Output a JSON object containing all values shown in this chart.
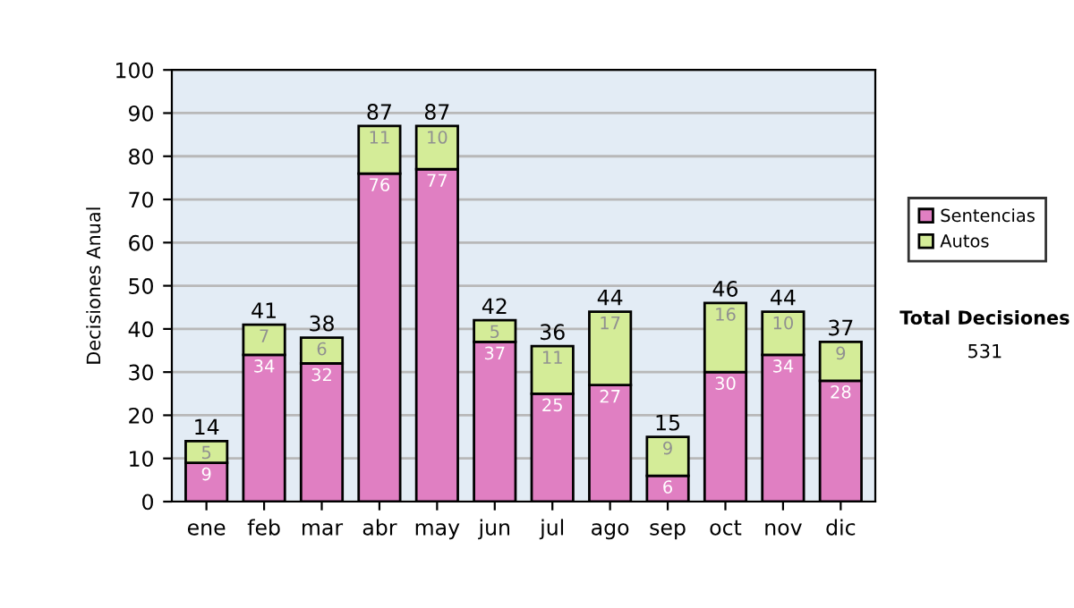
{
  "chart_data": {
    "type": "bar",
    "stacked": true,
    "ylabel": "Decisiones Anual",
    "categories": [
      "ene",
      "feb",
      "mar",
      "abr",
      "may",
      "jun",
      "jul",
      "ago",
      "sep",
      "oct",
      "nov",
      "dic"
    ],
    "series": [
      {
        "name": "Sentencias",
        "color": "#e07fc2",
        "values": [
          9,
          34,
          32,
          76,
          77,
          37,
          25,
          27,
          6,
          30,
          34,
          28
        ]
      },
      {
        "name": "Autos",
        "color": "#d4ec98",
        "values": [
          5,
          7,
          6,
          11,
          10,
          5,
          11,
          17,
          9,
          16,
          10,
          9
        ]
      }
    ],
    "totals": [
      "14",
      "41",
      "38",
      "87",
      "87",
      "42",
      "36",
      "44",
      "15",
      "46",
      "44",
      "37"
    ],
    "data_labels": true,
    "ylim": [
      0,
      100
    ],
    "yticks": [
      0,
      10,
      20,
      30,
      40,
      50,
      60,
      70,
      80,
      90,
      100
    ],
    "grid": "y",
    "legend": "right",
    "annotations": [
      "Total Decisiones",
      "531"
    ]
  }
}
